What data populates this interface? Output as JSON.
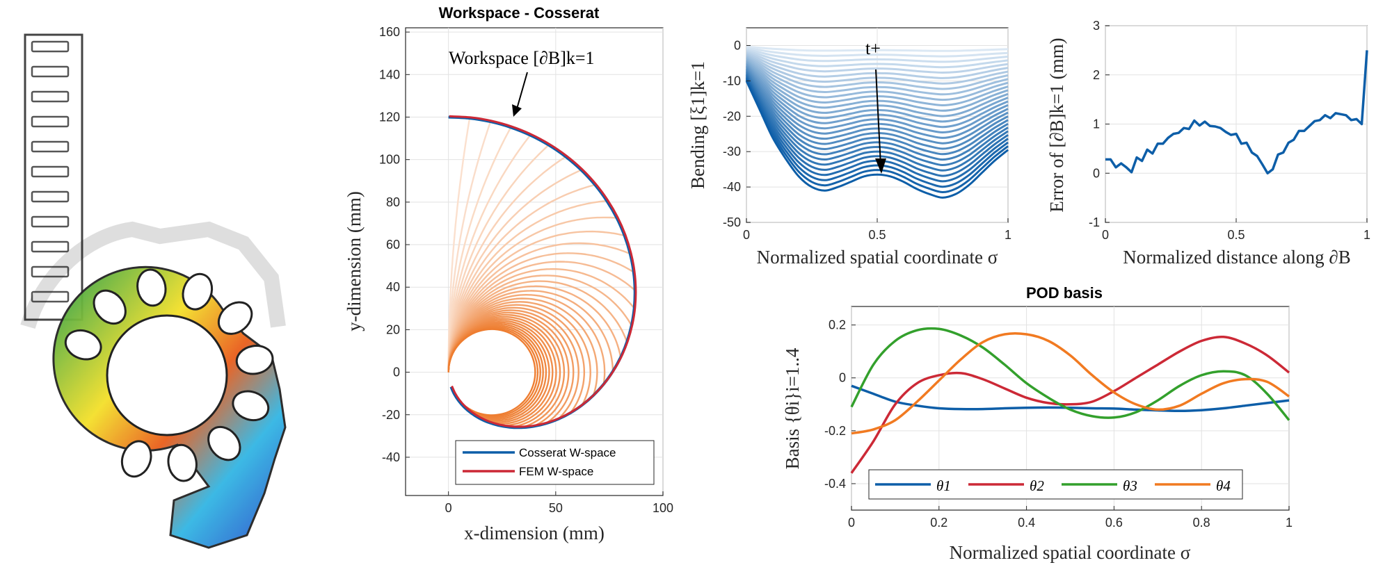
{
  "chart_data": [
    {
      "id": "workspace",
      "type": "line",
      "title": "Workspace - Cosserat",
      "xlabel": "x-dimension (mm)",
      "ylabel": "y-dimension (mm)",
      "xlim": [
        -20,
        100
      ],
      "ylim": [
        -58,
        162
      ],
      "xticks": [
        "0",
        "50",
        "100"
      ],
      "yticks": [
        "-40",
        "-20",
        "0",
        "20",
        "40",
        "60",
        "80",
        "100",
        "120",
        "140",
        "160"
      ],
      "grid": true,
      "legend_position": "bottom-right",
      "annotation": "Workspace [∂B]k=1",
      "configurations": {
        "count": 36,
        "length_mm": 120,
        "max_turn_deg": 340,
        "color_from": "#fbe3d3",
        "color_to": "#ee7d30"
      },
      "series": [
        {
          "name": "Cosserat W-space",
          "color": "#0d5ea8"
        },
        {
          "name": "FEM W-space",
          "color": "#cc2936"
        }
      ]
    },
    {
      "id": "bending",
      "type": "line",
      "xlabel": "Normalized spatial coordinate σ",
      "ylabel": "Bending [ξ1]k=1",
      "xlim": [
        0,
        1
      ],
      "ylim": [
        -50,
        5
      ],
      "xticks": [
        "0",
        "0.5",
        "1"
      ],
      "yticks": [
        "-50",
        "-40",
        "-30",
        "-20",
        "-10",
        "0"
      ],
      "grid": true,
      "annotation": "t+",
      "curves": {
        "count": 28,
        "final_profile": [
          [
            0,
            -10
          ],
          [
            0.05,
            -18
          ],
          [
            0.1,
            -26
          ],
          [
            0.15,
            -32
          ],
          [
            0.2,
            -37
          ],
          [
            0.25,
            -40
          ],
          [
            0.3,
            -41
          ],
          [
            0.35,
            -40
          ],
          [
            0.4,
            -38.5
          ],
          [
            0.45,
            -37
          ],
          [
            0.5,
            -36.5
          ],
          [
            0.55,
            -37
          ],
          [
            0.6,
            -38.5
          ],
          [
            0.65,
            -40.5
          ],
          [
            0.7,
            -42
          ],
          [
            0.75,
            -43
          ],
          [
            0.8,
            -42
          ],
          [
            0.85,
            -39.5
          ],
          [
            0.9,
            -36
          ],
          [
            0.95,
            -32.5
          ],
          [
            1,
            -29.5
          ]
        ]
      }
    },
    {
      "id": "error",
      "type": "line",
      "xlabel": "Normalized distance along ∂B",
      "ylabel": "Error of [∂B]k=1 (mm)",
      "xlim": [
        0,
        1
      ],
      "ylim": [
        -1,
        3
      ],
      "xticks": [
        "0",
        "0.5",
        "1"
      ],
      "yticks": [
        "-1",
        "0",
        "1",
        "2",
        "3"
      ],
      "grid": true,
      "series": [
        {
          "color": "#0d5ea8",
          "x": [
            0,
            0.02,
            0.04,
            0.06,
            0.08,
            0.1,
            0.12,
            0.14,
            0.16,
            0.18,
            0.2,
            0.22,
            0.24,
            0.26,
            0.28,
            0.3,
            0.32,
            0.34,
            0.36,
            0.38,
            0.4,
            0.42,
            0.44,
            0.46,
            0.48,
            0.5,
            0.52,
            0.54,
            0.56,
            0.58,
            0.6,
            0.62,
            0.64,
            0.66,
            0.68,
            0.7,
            0.72,
            0.74,
            0.76,
            0.78,
            0.8,
            0.82,
            0.84,
            0.86,
            0.88,
            0.9,
            0.92,
            0.94,
            0.96,
            0.98,
            1.0
          ],
          "y": [
            0.28,
            0.28,
            0.12,
            0.2,
            0.12,
            0.02,
            0.32,
            0.25,
            0.48,
            0.4,
            0.6,
            0.6,
            0.72,
            0.8,
            0.82,
            0.92,
            0.9,
            1.07,
            0.97,
            1.05,
            0.96,
            0.95,
            0.92,
            0.84,
            0.78,
            0.8,
            0.6,
            0.62,
            0.42,
            0.35,
            0.18,
            0.0,
            0.08,
            0.38,
            0.42,
            0.62,
            0.68,
            0.86,
            0.86,
            0.96,
            1.06,
            1.08,
            1.18,
            1.12,
            1.22,
            1.2,
            1.18,
            1.08,
            1.1,
            1.0,
            2.5
          ]
        }
      ]
    },
    {
      "id": "pod",
      "type": "line",
      "title": "POD basis",
      "xlabel": "Normalized spatial coordinate σ",
      "ylabel": "Basis {θi}i=1..4",
      "xlim": [
        0,
        1
      ],
      "ylim": [
        -0.5,
        0.27
      ],
      "xticks": [
        "0",
        "0.2",
        "0.4",
        "0.6",
        "0.8",
        "1"
      ],
      "yticks": [
        "-0.4",
        "-0.2",
        "0",
        "0.2"
      ],
      "grid": true,
      "legend_position": "bottom-left",
      "x": [
        0,
        0.05,
        0.1,
        0.15,
        0.2,
        0.25,
        0.3,
        0.35,
        0.4,
        0.45,
        0.5,
        0.55,
        0.6,
        0.65,
        0.7,
        0.75,
        0.8,
        0.85,
        0.9,
        0.95,
        1.0
      ],
      "series": [
        {
          "name": "θ1",
          "color": "#0d5ea8",
          "values": [
            -0.03,
            -0.06,
            -0.09,
            -0.105,
            -0.115,
            -0.118,
            -0.118,
            -0.115,
            -0.113,
            -0.112,
            -0.113,
            -0.115,
            -0.116,
            -0.12,
            -0.123,
            -0.125,
            -0.122,
            -0.115,
            -0.105,
            -0.095,
            -0.085
          ]
        },
        {
          "name": "θ2",
          "color": "#cc2936",
          "values": [
            -0.36,
            -0.24,
            -0.1,
            -0.02,
            0.01,
            0.018,
            -0.005,
            -0.04,
            -0.075,
            -0.095,
            -0.1,
            -0.09,
            -0.05,
            0.0,
            0.05,
            0.1,
            0.14,
            0.155,
            0.13,
            0.085,
            0.02
          ]
        },
        {
          "name": "θ3",
          "color": "#33a02c",
          "values": [
            -0.11,
            0.05,
            0.14,
            0.18,
            0.185,
            0.16,
            0.115,
            0.05,
            -0.02,
            -0.075,
            -0.12,
            -0.145,
            -0.15,
            -0.13,
            -0.085,
            -0.03,
            0.01,
            0.025,
            0.01,
            -0.06,
            -0.16
          ]
        },
        {
          "name": "θ4",
          "color": "#f17a21",
          "values": [
            -0.21,
            -0.195,
            -0.16,
            -0.09,
            -0.01,
            0.07,
            0.135,
            0.165,
            0.165,
            0.14,
            0.085,
            0.01,
            -0.055,
            -0.1,
            -0.12,
            -0.105,
            -0.06,
            -0.02,
            -0.005,
            -0.015,
            -0.07
          ]
        }
      ]
    }
  ]
}
